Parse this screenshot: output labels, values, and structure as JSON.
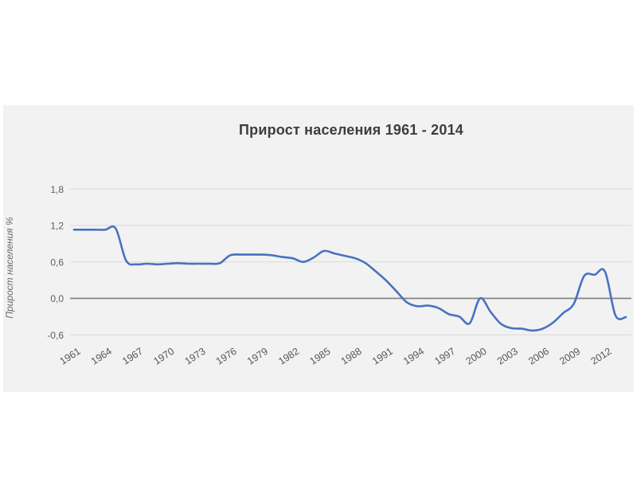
{
  "chart_data": {
    "type": "line",
    "title": "Прирост населения 1961 - 2014",
    "xlabel": "",
    "ylabel": "Прирост населения %",
    "x": [
      1961,
      1962,
      1963,
      1964,
      1965,
      1966,
      1967,
      1968,
      1969,
      1970,
      1971,
      1972,
      1973,
      1974,
      1975,
      1976,
      1977,
      1978,
      1979,
      1980,
      1981,
      1982,
      1983,
      1984,
      1985,
      1986,
      1987,
      1988,
      1989,
      1990,
      1991,
      1992,
      1993,
      1994,
      1995,
      1996,
      1997,
      1998,
      1999,
      2000,
      2001,
      2002,
      2003,
      2004,
      2005,
      2006,
      2007,
      2008,
      2009,
      2010,
      2011,
      2012,
      2013,
      2014
    ],
    "values": [
      1.13,
      1.13,
      1.13,
      1.13,
      1.15,
      0.62,
      0.56,
      0.57,
      0.56,
      0.57,
      0.58,
      0.57,
      0.57,
      0.57,
      0.58,
      0.71,
      0.72,
      0.72,
      0.72,
      0.71,
      0.68,
      0.66,
      0.6,
      0.67,
      0.78,
      0.74,
      0.7,
      0.66,
      0.58,
      0.44,
      0.29,
      0.11,
      -0.07,
      -0.13,
      -0.12,
      -0.16,
      -0.26,
      -0.3,
      -0.41,
      0.0,
      -0.22,
      -0.42,
      -0.49,
      -0.5,
      -0.53,
      -0.5,
      -0.4,
      -0.24,
      -0.09,
      0.37,
      0.39,
      0.44,
      -0.28,
      -0.31
    ],
    "x_ticks": [
      1961,
      1964,
      1967,
      1970,
      1973,
      1976,
      1979,
      1982,
      1985,
      1988,
      1991,
      1994,
      1997,
      2000,
      2003,
      2006,
      2009,
      2012
    ],
    "x_tick_labels": [
      "1961",
      "1964",
      "1967",
      "1970",
      "1973",
      "1976",
      "1979",
      "1982",
      "1985",
      "1988",
      "1991",
      "1994",
      "1997",
      "2000",
      "2003",
      "2006",
      "2009",
      "2012"
    ],
    "y_ticks": [
      1.8,
      1.2,
      0.6,
      0.0,
      -0.6
    ],
    "y_tick_labels": [
      "1,8",
      "1,2",
      "0,6",
      "0,0",
      "-0,6"
    ],
    "ylim": [
      -0.9,
      1.95
    ],
    "grid": true,
    "legend": "none",
    "line_color": "#4673c1",
    "grid_color": "#dadada",
    "zero_line_color": "#858585",
    "panel_background": "#f2f2f2",
    "tick_color": "#5e5e5e",
    "title_color": "#3d3d3d"
  }
}
